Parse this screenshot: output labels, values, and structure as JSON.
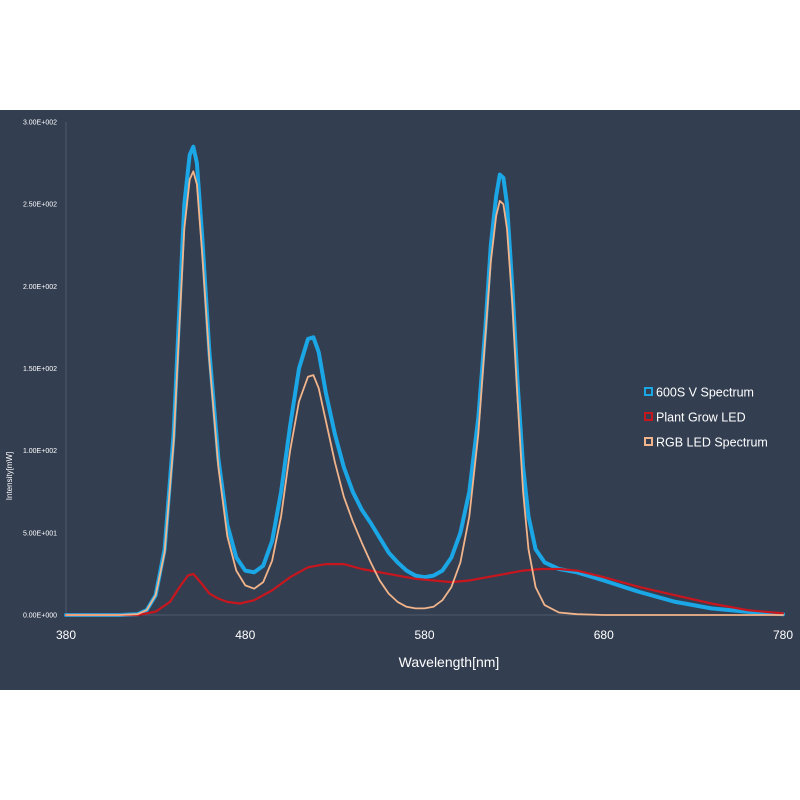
{
  "chart_data": {
    "type": "line",
    "xlabel": "Wavelength[nm]",
    "ylabel": "Intensity[mW]",
    "xlim": [
      380,
      780
    ],
    "ylim": [
      0,
      300
    ],
    "x_ticks": [
      380,
      480,
      580,
      680,
      780
    ],
    "x_tick_labels": [
      "380",
      "480",
      "580",
      "680",
      "780"
    ],
    "y_ticks": [
      0,
      50,
      100,
      150,
      200,
      250,
      300
    ],
    "y_tick_labels": [
      "0.00E+000",
      "5.00E+001",
      "1.00E+002",
      "1.50E+002",
      "2.00E+002",
      "2.50E+002",
      "3.00E+002"
    ],
    "grid": false,
    "legend_position": "right",
    "series": [
      {
        "name": "600S V Spectrum",
        "color": "#1ba6e6",
        "points": [
          [
            380,
            0
          ],
          [
            410,
            0
          ],
          [
            420,
            0.5
          ],
          [
            425,
            3
          ],
          [
            430,
            12
          ],
          [
            435,
            40
          ],
          [
            440,
            110
          ],
          [
            443,
            180
          ],
          [
            446,
            250
          ],
          [
            449,
            280
          ],
          [
            451,
            285
          ],
          [
            453,
            275
          ],
          [
            456,
            230
          ],
          [
            460,
            160
          ],
          [
            465,
            95
          ],
          [
            470,
            55
          ],
          [
            475,
            35
          ],
          [
            480,
            27
          ],
          [
            485,
            26
          ],
          [
            490,
            30
          ],
          [
            495,
            45
          ],
          [
            500,
            75
          ],
          [
            505,
            115
          ],
          [
            510,
            150
          ],
          [
            515,
            168
          ],
          [
            518,
            169
          ],
          [
            521,
            160
          ],
          [
            525,
            135
          ],
          [
            530,
            110
          ],
          [
            535,
            90
          ],
          [
            540,
            75
          ],
          [
            545,
            64
          ],
          [
            550,
            56
          ],
          [
            555,
            47
          ],
          [
            560,
            38
          ],
          [
            565,
            32
          ],
          [
            570,
            27
          ],
          [
            575,
            24
          ],
          [
            580,
            23
          ],
          [
            585,
            24
          ],
          [
            590,
            27
          ],
          [
            595,
            35
          ],
          [
            600,
            50
          ],
          [
            605,
            75
          ],
          [
            610,
            120
          ],
          [
            614,
            175
          ],
          [
            617,
            225
          ],
          [
            620,
            255
          ],
          [
            622,
            268
          ],
          [
            624,
            266
          ],
          [
            626,
            250
          ],
          [
            629,
            200
          ],
          [
            632,
            140
          ],
          [
            635,
            90
          ],
          [
            638,
            60
          ],
          [
            642,
            40
          ],
          [
            647,
            32
          ],
          [
            655,
            28
          ],
          [
            665,
            26
          ],
          [
            680,
            21
          ],
          [
            700,
            14
          ],
          [
            720,
            8
          ],
          [
            740,
            4
          ],
          [
            760,
            2
          ],
          [
            780,
            0.5
          ]
        ]
      },
      {
        "name": "Plant Grow LED",
        "color": "#c8161e",
        "points": [
          [
            380,
            0
          ],
          [
            420,
            0
          ],
          [
            430,
            2
          ],
          [
            438,
            8
          ],
          [
            444,
            18
          ],
          [
            448,
            24
          ],
          [
            451,
            25
          ],
          [
            455,
            20
          ],
          [
            460,
            13
          ],
          [
            465,
            10
          ],
          [
            470,
            8
          ],
          [
            477,
            7
          ],
          [
            485,
            9
          ],
          [
            495,
            15
          ],
          [
            505,
            23
          ],
          [
            515,
            29
          ],
          [
            525,
            31
          ],
          [
            535,
            31
          ],
          [
            545,
            28
          ],
          [
            555,
            26
          ],
          [
            565,
            24
          ],
          [
            575,
            22
          ],
          [
            585,
            21
          ],
          [
            595,
            20
          ],
          [
            605,
            21
          ],
          [
            615,
            23
          ],
          [
            625,
            25
          ],
          [
            635,
            27
          ],
          [
            645,
            28
          ],
          [
            655,
            28
          ],
          [
            665,
            27
          ],
          [
            680,
            23
          ],
          [
            700,
            17
          ],
          [
            720,
            12
          ],
          [
            740,
            7
          ],
          [
            760,
            3
          ],
          [
            780,
            1
          ]
        ]
      },
      {
        "name": "RGB LED Spectrum",
        "color": "#f2b48a",
        "points": [
          [
            380,
            0
          ],
          [
            410,
            0
          ],
          [
            420,
            0.5
          ],
          [
            425,
            3
          ],
          [
            430,
            12
          ],
          [
            435,
            38
          ],
          [
            440,
            105
          ],
          [
            443,
            170
          ],
          [
            446,
            235
          ],
          [
            449,
            265
          ],
          [
            451,
            270
          ],
          [
            453,
            262
          ],
          [
            456,
            220
          ],
          [
            460,
            155
          ],
          [
            465,
            90
          ],
          [
            470,
            48
          ],
          [
            475,
            27
          ],
          [
            480,
            18
          ],
          [
            485,
            16
          ],
          [
            490,
            20
          ],
          [
            495,
            33
          ],
          [
            500,
            60
          ],
          [
            505,
            100
          ],
          [
            510,
            130
          ],
          [
            515,
            145
          ],
          [
            518,
            146
          ],
          [
            521,
            138
          ],
          [
            525,
            118
          ],
          [
            530,
            93
          ],
          [
            535,
            72
          ],
          [
            540,
            57
          ],
          [
            545,
            44
          ],
          [
            550,
            32
          ],
          [
            555,
            21
          ],
          [
            560,
            13
          ],
          [
            565,
            8
          ],
          [
            570,
            5
          ],
          [
            575,
            4
          ],
          [
            580,
            4
          ],
          [
            585,
            5
          ],
          [
            590,
            9
          ],
          [
            595,
            17
          ],
          [
            600,
            32
          ],
          [
            605,
            60
          ],
          [
            610,
            110
          ],
          [
            614,
            170
          ],
          [
            617,
            215
          ],
          [
            620,
            243
          ],
          [
            622,
            252
          ],
          [
            624,
            250
          ],
          [
            626,
            235
          ],
          [
            629,
            190
          ],
          [
            632,
            130
          ],
          [
            635,
            75
          ],
          [
            638,
            40
          ],
          [
            642,
            17
          ],
          [
            647,
            6
          ],
          [
            655,
            1.5
          ],
          [
            665,
            0.5
          ],
          [
            680,
            0
          ],
          [
            780,
            0
          ]
        ]
      }
    ]
  }
}
